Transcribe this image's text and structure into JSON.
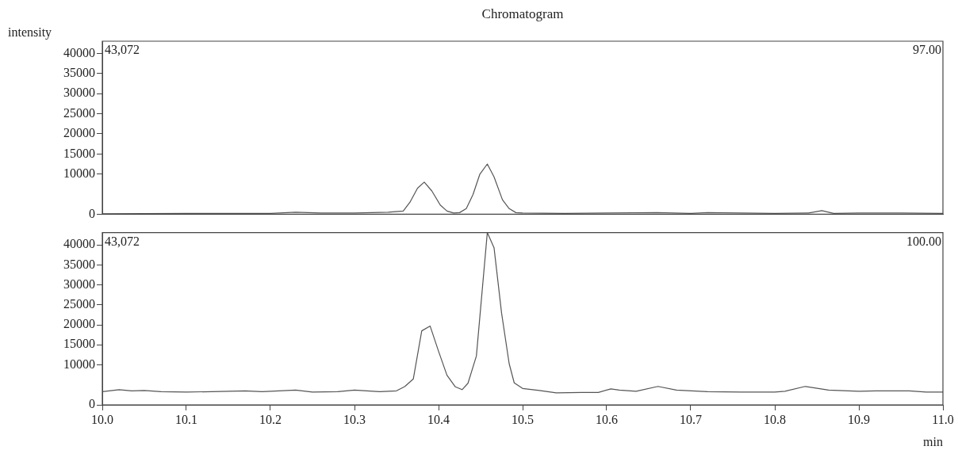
{
  "chart_data": [
    {
      "type": "line",
      "title": "Chromatogram",
      "ylabel": "intensity",
      "color": "#555555",
      "annotations": [
        "43,072",
        "97.00"
      ],
      "tick_labels": "y",
      "x": [
        10.0,
        10.1,
        10.2,
        10.23,
        10.26,
        10.3,
        10.34,
        10.358,
        10.366,
        10.375,
        10.383,
        10.392,
        10.402,
        10.41,
        10.418,
        10.425,
        10.433,
        10.441,
        10.449,
        10.458,
        10.466,
        10.476,
        10.484,
        10.492,
        10.5,
        10.55,
        10.6,
        10.66,
        10.7,
        10.72,
        10.8,
        10.84,
        10.856,
        10.87,
        10.9,
        10.95,
        11.0
      ],
      "values": [
        100,
        200,
        200,
        500,
        300,
        300,
        500,
        800,
        3000,
        6500,
        8000,
        5800,
        2300,
        800,
        300,
        400,
        1400,
        4900,
        9900,
        12500,
        9300,
        3600,
        1400,
        400,
        300,
        200,
        300,
        400,
        200,
        400,
        200,
        300,
        900,
        200,
        300,
        300,
        200
      ],
      "xlim": [
        10.0,
        11.0
      ],
      "ylim": [
        0,
        43072
      ],
      "yticks": [
        0,
        10000,
        15000,
        20000,
        25000,
        30000,
        35000,
        40000
      ]
    },
    {
      "type": "line",
      "xlabel": "min",
      "color": "#555555",
      "annotations": [
        "43,072",
        "100.00"
      ],
      "x": [
        10.0,
        10.02,
        10.035,
        10.05,
        10.07,
        10.1,
        10.13,
        10.17,
        10.19,
        10.2,
        10.23,
        10.25,
        10.28,
        10.3,
        10.33,
        10.35,
        10.36,
        10.37,
        10.38,
        10.39,
        10.4,
        10.41,
        10.42,
        10.428,
        10.435,
        10.445,
        10.458,
        10.466,
        10.475,
        10.484,
        10.49,
        10.5,
        10.52,
        10.54,
        10.57,
        10.59,
        10.605,
        10.615,
        10.635,
        10.661,
        10.683,
        10.72,
        10.76,
        10.8,
        10.812,
        10.836,
        10.864,
        10.9,
        10.92,
        10.96,
        10.98,
        11.0
      ],
      "values": [
        3300,
        3800,
        3500,
        3600,
        3300,
        3200,
        3300,
        3500,
        3300,
        3400,
        3700,
        3200,
        3300,
        3700,
        3300,
        3500,
        4600,
        6500,
        18500,
        19700,
        13400,
        7400,
        4500,
        3800,
        5400,
        12200,
        43072,
        39300,
        22900,
        10300,
        5500,
        4100,
        3600,
        3000,
        3100,
        3100,
        4000,
        3700,
        3400,
        4600,
        3700,
        3300,
        3200,
        3200,
        3400,
        4600,
        3700,
        3400,
        3500,
        3500,
        3200,
        3200
      ],
      "xlim": [
        10.0,
        11.0
      ],
      "xticks": [
        {
          "value": 10,
          "label": "10.0"
        },
        10.1,
        10.2,
        10.3,
        10.4,
        10.5,
        10.6,
        10.7,
        10.8,
        10.9,
        {
          "value": 11,
          "label": "11.0"
        }
      ],
      "ylim": [
        0,
        43072
      ],
      "yticks": [
        0,
        10000,
        15000,
        20000,
        25000,
        30000,
        35000,
        40000
      ]
    }
  ]
}
